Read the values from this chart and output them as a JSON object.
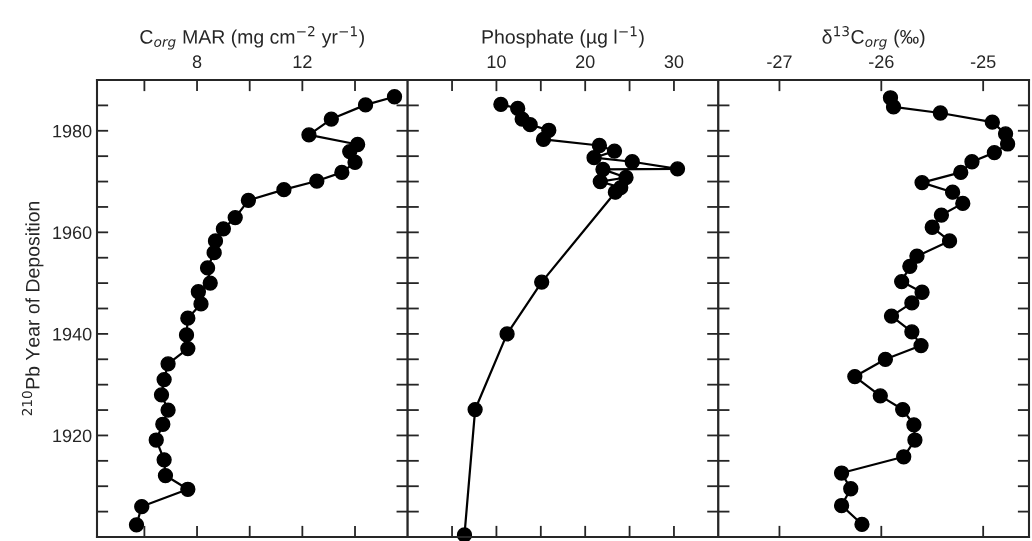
{
  "chart_data": [
    {
      "type": "line",
      "xlabel": "C$_{org}$ MAR (mg cm$^{−2}$ yr$^{−1}$)",
      "ylabel": "$^{210}$Pb Year of Deposition",
      "marker": "circle",
      "line_style": "solid",
      "xlim": [
        4.2,
        16
      ],
      "xticks": [
        {
          "value": 6,
          "label": null
        },
        8,
        {
          "value": 10,
          "label": null
        },
        12,
        {
          "value": 14,
          "label": null
        }
      ],
      "ylim": [
        1900,
        1990
      ],
      "yticks": [
        {
          "value": 1905,
          "label": null
        },
        {
          "value": 1910,
          "label": null
        },
        {
          "value": 1915,
          "label": null
        },
        1920,
        {
          "value": 1925,
          "label": null
        },
        {
          "value": 1930,
          "label": null
        },
        {
          "value": 1935,
          "label": null
        },
        1940,
        {
          "value": 1945,
          "label": null
        },
        {
          "value": 1950,
          "label": null
        },
        {
          "value": 1955,
          "label": null
        },
        1960,
        {
          "value": 1965,
          "label": null
        },
        {
          "value": 1970,
          "label": null
        },
        {
          "value": 1975,
          "label": null
        },
        1980,
        {
          "value": 1985,
          "label": null
        }
      ],
      "series": [
        {
          "color": "#000000",
          "x": [
            15.5,
            14.4,
            13.1,
            12.25,
            14.1,
            13.8,
            14.0,
            13.5,
            12.55,
            11.3,
            9.95,
            9.45,
            9.0,
            8.7,
            8.65,
            8.4,
            8.5,
            8.05,
            8.15,
            7.65,
            7.6,
            7.65,
            6.9,
            6.75,
            6.65,
            6.9,
            6.7,
            6.45,
            6.75,
            6.8,
            7.65,
            5.9,
            5.7
          ],
          "values": [
            1986.7,
            1985.1,
            1982.3,
            1979.2,
            1977.3,
            1975.9,
            1973.8,
            1971.8,
            1970.1,
            1968.4,
            1966.3,
            1962.9,
            1960.7,
            1958.3,
            1956.0,
            1953.0,
            1950.0,
            1948.3,
            1945.9,
            1943.1,
            1939.8,
            1937.1,
            1934.1,
            1931.0,
            1928.0,
            1925.0,
            1922.2,
            1919.1,
            1915.2,
            1912.1,
            1909.4,
            1906.0,
            1902.4
          ]
        }
      ]
    },
    {
      "type": "line",
      "xlabel": "Phosphate (µg l$^{−1}$)",
      "marker": "circle",
      "line_style": "solid",
      "tick_labels": "x",
      "xlim": [
        0,
        35
      ],
      "xticks": [
        {
          "value": 5,
          "label": null
        },
        10,
        {
          "value": 15,
          "label": null
        },
        20,
        {
          "value": 25,
          "label": null
        },
        30
      ],
      "ylim": [
        1900,
        1990
      ],
      "yticks": [
        1905,
        1910,
        1915,
        1920,
        1925,
        1930,
        1935,
        1940,
        1945,
        1950,
        1955,
        1960,
        1965,
        1970,
        1975,
        1980,
        1985
      ],
      "series": [
        {
          "color": "#000000",
          "x": [
            10.5,
            12.4,
            12.9,
            13.8,
            15.9,
            15.3,
            21.6,
            23.3,
            21.0,
            25.3,
            30.4,
            22.0,
            24.6,
            21.7,
            24.0,
            23.4,
            15.1,
            11.2,
            7.6,
            6.4
          ],
          "values": [
            1985.2,
            1984.4,
            1982.3,
            1981.2,
            1980.1,
            1978.3,
            1977.1,
            1976.0,
            1974.7,
            1973.9,
            1972.5,
            1972.4,
            1970.8,
            1970.0,
            1968.8,
            1967.9,
            1950.2,
            1940.0,
            1925.1,
            1900.4
          ]
        }
      ]
    },
    {
      "type": "line",
      "xlabel": "δ$^{13}$C$_{org}$ (‰)",
      "marker": "circle",
      "line_style": "solid",
      "tick_labels": "x",
      "xlim": [
        -27.6,
        -24.55
      ],
      "xticks": [
        -27,
        -26,
        -25
      ],
      "ylim": [
        1900,
        1990
      ],
      "yticks": [
        1905,
        1910,
        1915,
        1920,
        1925,
        1930,
        1935,
        1940,
        1945,
        1950,
        1955,
        1960,
        1965,
        1970,
        1975,
        1980,
        1985
      ],
      "series": [
        {
          "color": "#000000",
          "x": [
            -25.91,
            -25.88,
            -25.42,
            -24.91,
            -24.78,
            -24.76,
            -24.89,
            -25.11,
            -25.22,
            -25.6,
            -25.3,
            -25.2,
            -25.41,
            -25.5,
            -25.33,
            -25.65,
            -25.72,
            -25.8,
            -25.6,
            -25.7,
            -25.9,
            -25.7,
            -25.61,
            -25.96,
            -26.26,
            -26.01,
            -25.79,
            -25.68,
            -25.67,
            -25.78,
            -26.39,
            -26.3,
            -26.39,
            -26.19
          ],
          "values": [
            1986.5,
            1984.7,
            1983.5,
            1981.7,
            1979.4,
            1977.4,
            1975.7,
            1973.9,
            1971.8,
            1969.8,
            1967.9,
            1965.7,
            1963.4,
            1961.0,
            1958.3,
            1955.3,
            1953.3,
            1950.3,
            1948.2,
            1946.1,
            1943.5,
            1940.4,
            1937.7,
            1935.0,
            1931.6,
            1927.8,
            1925.1,
            1922.1,
            1919.1,
            1915.8,
            1912.6,
            1909.5,
            1906.2,
            1902.5
          ]
        }
      ]
    }
  ]
}
